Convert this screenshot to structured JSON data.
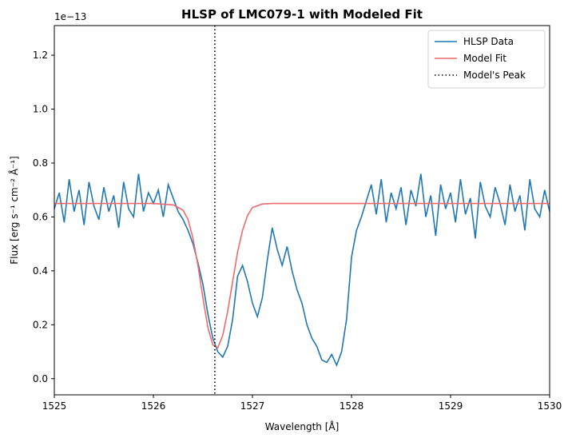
{
  "chart_data": {
    "type": "line",
    "title": "HLSP of LMC079-1 with Modeled Fit",
    "xlabel": "Wavelength [Å]",
    "ylabel": "Flux [erg s⁻¹ cm⁻² Å⁻¹]",
    "y_offset_text": "1e−13",
    "xlim": [
      1525,
      1530
    ],
    "ylim": [
      -0.06,
      1.31
    ],
    "x_ticks": [
      1525,
      1526,
      1527,
      1528,
      1529,
      1530
    ],
    "y_ticks": [
      0.0,
      0.2,
      0.4,
      0.6,
      0.8,
      1.0,
      1.2
    ],
    "x_tick_labels": [
      "1525",
      "1526",
      "1527",
      "1528",
      "1529",
      "1530"
    ],
    "y_tick_labels": [
      "0.0",
      "0.2",
      "0.4",
      "0.6",
      "0.8",
      "1.0",
      "1.2"
    ],
    "grid": false,
    "legend_position": "top-right",
    "series": [
      {
        "name": "HLSP Data",
        "color": "#1f77b4",
        "style": "solid",
        "x": [
          1525.0,
          1525.05,
          1525.1,
          1525.15,
          1525.2,
          1525.25,
          1525.3,
          1525.35,
          1525.4,
          1525.45,
          1525.5,
          1525.55,
          1525.6,
          1525.65,
          1525.7,
          1525.75,
          1525.8,
          1525.85,
          1525.9,
          1525.95,
          1526.0,
          1526.05,
          1526.1,
          1526.15,
          1526.2,
          1526.25,
          1526.3,
          1526.35,
          1526.4,
          1526.45,
          1526.5,
          1526.55,
          1526.6,
          1526.65,
          1526.7,
          1526.75,
          1526.8,
          1526.85,
          1526.9,
          1526.95,
          1527.0,
          1527.05,
          1527.1,
          1527.15,
          1527.2,
          1527.25,
          1527.3,
          1527.35,
          1527.4,
          1527.45,
          1527.5,
          1527.55,
          1527.6,
          1527.65,
          1527.7,
          1527.75,
          1527.8,
          1527.85,
          1527.9,
          1527.95,
          1528.0,
          1528.05,
          1528.1,
          1528.15,
          1528.2,
          1528.25,
          1528.3,
          1528.35,
          1528.4,
          1528.45,
          1528.5,
          1528.55,
          1528.6,
          1528.65,
          1528.7,
          1528.75,
          1528.8,
          1528.85,
          1528.9,
          1528.95,
          1529.0,
          1529.05,
          1529.1,
          1529.15,
          1529.2,
          1529.25,
          1529.3,
          1529.35,
          1529.4,
          1529.45,
          1529.5,
          1529.55,
          1529.6,
          1529.65,
          1529.7,
          1529.75,
          1529.8,
          1529.85,
          1529.9,
          1529.95,
          1530.0
        ],
        "values": [
          0.63,
          0.69,
          0.58,
          0.74,
          0.62,
          0.7,
          0.57,
          0.73,
          0.64,
          0.59,
          0.71,
          0.62,
          0.68,
          0.56,
          0.73,
          0.63,
          0.6,
          0.76,
          0.62,
          0.69,
          0.65,
          0.7,
          0.6,
          0.72,
          0.67,
          0.62,
          0.59,
          0.55,
          0.5,
          0.43,
          0.35,
          0.24,
          0.15,
          0.1,
          0.08,
          0.12,
          0.22,
          0.38,
          0.42,
          0.36,
          0.28,
          0.23,
          0.3,
          0.44,
          0.56,
          0.48,
          0.42,
          0.49,
          0.4,
          0.33,
          0.28,
          0.2,
          0.15,
          0.12,
          0.07,
          0.06,
          0.09,
          0.05,
          0.1,
          0.22,
          0.45,
          0.55,
          0.6,
          0.66,
          0.72,
          0.61,
          0.74,
          0.58,
          0.69,
          0.63,
          0.71,
          0.57,
          0.7,
          0.64,
          0.76,
          0.6,
          0.68,
          0.53,
          0.72,
          0.63,
          0.69,
          0.58,
          0.74,
          0.61,
          0.67,
          0.52,
          0.73,
          0.64,
          0.6,
          0.71,
          0.65,
          0.57,
          0.72,
          0.62,
          0.68,
          0.55,
          0.74,
          0.63,
          0.6,
          0.7,
          0.62
        ]
      },
      {
        "name": "Model Fit",
        "color": "#f06a6a",
        "style": "solid",
        "x": [
          1525.0,
          1525.5,
          1526.0,
          1526.2,
          1526.3,
          1526.35,
          1526.4,
          1526.45,
          1526.5,
          1526.55,
          1526.6,
          1526.65,
          1526.7,
          1526.75,
          1526.8,
          1526.85,
          1526.9,
          1526.95,
          1527.0,
          1527.1,
          1527.2,
          1527.5,
          1528.0,
          1529.0,
          1530.0
        ],
        "values": [
          0.65,
          0.65,
          0.65,
          0.645,
          0.625,
          0.59,
          0.52,
          0.42,
          0.3,
          0.19,
          0.125,
          0.115,
          0.16,
          0.25,
          0.36,
          0.47,
          0.55,
          0.605,
          0.635,
          0.648,
          0.65,
          0.65,
          0.65,
          0.65,
          0.65
        ]
      },
      {
        "name": "Model's Peak",
        "color": "#000000",
        "style": "dotted",
        "x_value": 1526.62
      }
    ]
  }
}
